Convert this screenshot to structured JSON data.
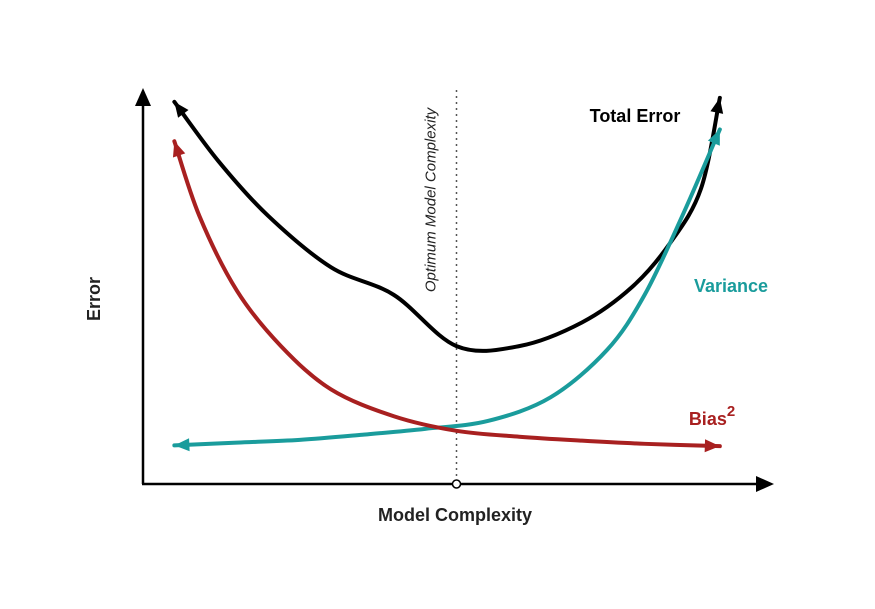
{
  "chart_data": {
    "type": "line",
    "title": "",
    "xlabel": "Model Complexity",
    "ylabel": "Error",
    "xlim": [
      0,
      10
    ],
    "ylim": [
      0,
      10
    ],
    "grid": false,
    "legend": "none",
    "series": [
      {
        "name": "Total Error",
        "color": "#000000",
        "label_parts": [
          "Total Error"
        ],
        "x": [
          0.5,
          1.2,
          2.0,
          3.0,
          4.0,
          5.0,
          6.0,
          7.0,
          7.8,
          8.4,
          8.9,
          9.2
        ],
        "y": [
          9.7,
          8.2,
          6.8,
          5.5,
          4.8,
          3.5,
          3.5,
          4.1,
          5.0,
          6.1,
          7.5,
          9.8
        ]
      },
      {
        "name": "Variance",
        "color": "#1a9c9c",
        "label_parts": [
          "Variance"
        ],
        "x": [
          0.5,
          1.5,
          2.5,
          3.5,
          4.5,
          5.5,
          6.5,
          7.4,
          8.0,
          8.6,
          9.2
        ],
        "y": [
          0.98,
          1.05,
          1.12,
          1.25,
          1.4,
          1.6,
          2.2,
          3.4,
          4.8,
          6.8,
          9.0
        ]
      },
      {
        "name": "Bias2",
        "color": "#a82020",
        "label_parts": [
          "Bias",
          "2"
        ],
        "x": [
          0.5,
          0.9,
          1.5,
          2.2,
          3.0,
          4.0,
          5.0,
          6.0,
          7.0,
          8.0,
          9.2
        ],
        "y": [
          8.7,
          6.8,
          4.9,
          3.5,
          2.4,
          1.72,
          1.35,
          1.2,
          1.1,
          1.02,
          0.96
        ]
      }
    ],
    "annotations": [
      {
        "text": "Optimum Model Complexity",
        "x": 5.0,
        "style": "dotted vertical line"
      }
    ]
  }
}
